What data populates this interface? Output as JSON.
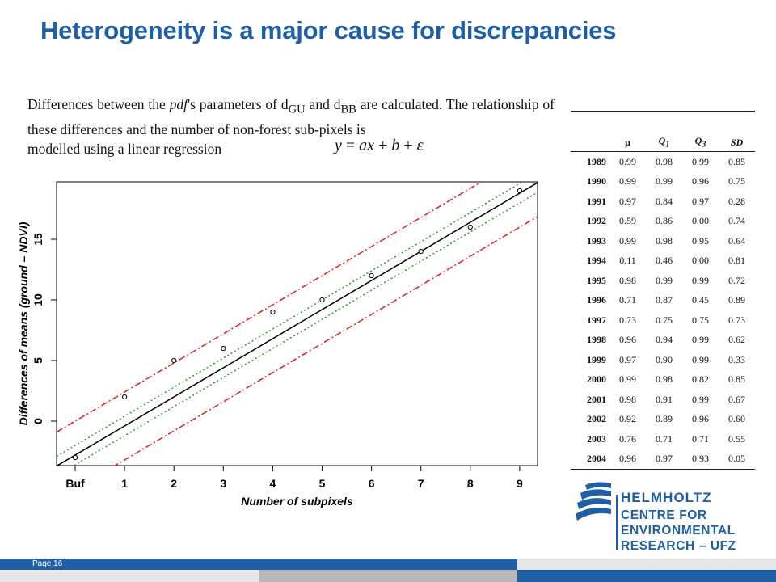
{
  "slide": {
    "title": "Heterogeneity is a major cause for discrepancies",
    "page_label": "Page 16"
  },
  "intro": {
    "text_a": "Differences between the ",
    "text_pdf": "pdf",
    "text_b": "'s parameters of d",
    "sub_gu": "GU",
    "text_c": " and d",
    "sub_bb": "BB",
    "text_d": " are calculated. The relationship of these differences and the number of non-forest sub-pixels is",
    "text_e": "modelled using a linear regression"
  },
  "formula": {
    "y": "y",
    "eq": " = ",
    "a": "a",
    "x": "x",
    "plus1": " + ",
    "b": "b",
    "plus2": " + ",
    "eps": "ε"
  },
  "chart_data": {
    "type": "scatter",
    "xlabel": "Number of subpixels",
    "ylabel": "Differences of means (ground – NDVI)",
    "x_tick_labels": [
      "Buf",
      "1",
      "2",
      "3",
      "4",
      "5",
      "6",
      "7",
      "8",
      "9"
    ],
    "y_ticks": [
      0,
      5,
      10,
      15
    ],
    "xlim": [
      0,
      9
    ],
    "ylim": [
      -3.5,
      19.8
    ],
    "points": [
      {
        "x": 0,
        "y": -3
      },
      {
        "x": 1,
        "y": 2
      },
      {
        "x": 2,
        "y": 5
      },
      {
        "x": 3,
        "y": 6
      },
      {
        "x": 4,
        "y": 9
      },
      {
        "x": 5,
        "y": 10
      },
      {
        "x": 6,
        "y": 12
      },
      {
        "x": 7,
        "y": 14
      },
      {
        "x": 8,
        "y": 16
      },
      {
        "x": 9,
        "y": 19
      }
    ],
    "fit": {
      "intercept": -2.8,
      "slope": 2.4
    },
    "confidence_band": {
      "offset": 0.8,
      "color": "#2e9a2e"
    },
    "prediction_band": {
      "offset": 2.8,
      "color": "#e02020"
    },
    "fit_color": "#000000"
  },
  "table": {
    "headers": [
      "",
      "μ",
      "Q1",
      "Q3",
      "SD"
    ],
    "rows": [
      [
        "1989",
        "0.99",
        "0.98",
        "0.99",
        "0.85"
      ],
      [
        "1990",
        "0.99",
        "0.99",
        "0.96",
        "0.75"
      ],
      [
        "1991",
        "0.97",
        "0.84",
        "0.97",
        "0.28"
      ],
      [
        "1992",
        "0.59",
        "0.86",
        "0.00",
        "0.74"
      ],
      [
        "1993",
        "0.99",
        "0.98",
        "0.95",
        "0.64"
      ],
      [
        "1994",
        "0.11",
        "0.46",
        "0.00",
        "0.81"
      ],
      [
        "1995",
        "0.98",
        "0.99",
        "0.99",
        "0.72"
      ],
      [
        "1996",
        "0.71",
        "0.87",
        "0.45",
        "0.89"
      ],
      [
        "1997",
        "0.73",
        "0.75",
        "0.75",
        "0.73"
      ],
      [
        "1998",
        "0.96",
        "0.94",
        "0.99",
        "0.62"
      ],
      [
        "1999",
        "0.97",
        "0.90",
        "0.99",
        "0.33"
      ],
      [
        "2000",
        "0.99",
        "0.98",
        "0.82",
        "0.85"
      ],
      [
        "2001",
        "0.98",
        "0.91",
        "0.99",
        "0.67"
      ],
      [
        "2002",
        "0.92",
        "0.89",
        "0.96",
        "0.60"
      ],
      [
        "2003",
        "0.76",
        "0.71",
        "0.71",
        "0.55"
      ],
      [
        "2004",
        "0.96",
        "0.97",
        "0.93",
        "0.05"
      ]
    ]
  },
  "logo": {
    "name": "HELMHOLTZ",
    "subtitle": "CENTRE FOR\nENVIRONMENTAL\nRESEARCH – UFZ",
    "color": "#1f5fa6"
  }
}
